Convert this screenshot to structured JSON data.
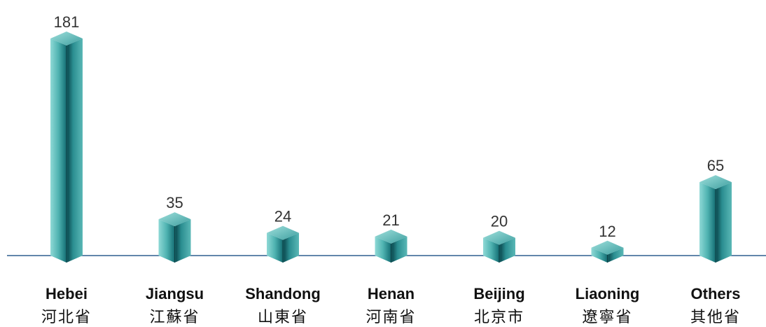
{
  "chart_data": {
    "type": "bar",
    "categories": [
      {
        "en": "Hebei",
        "zh": "河北省"
      },
      {
        "en": "Jiangsu",
        "zh": "江蘇省"
      },
      {
        "en": "Shandong",
        "zh": "山東省"
      },
      {
        "en": "Henan",
        "zh": "河南省"
      },
      {
        "en": "Beijing",
        "zh": "北京市"
      },
      {
        "en": "Liaoning",
        "zh": "遼寧省"
      },
      {
        "en": "Others",
        "zh": "其他省"
      }
    ],
    "values": [
      181,
      35,
      24,
      21,
      20,
      12,
      65
    ],
    "title": "",
    "xlabel": "",
    "ylabel": "",
    "ylim": [
      0,
      181
    ],
    "grid": false,
    "legend": "none",
    "colors": {
      "bar_light": "#7fd0d0",
      "bar_mid": "#3aa3a3",
      "bar_dark": "#0f5a5e",
      "bar_top": "#5fc4c4",
      "baseline": "#2f5f8f"
    }
  }
}
